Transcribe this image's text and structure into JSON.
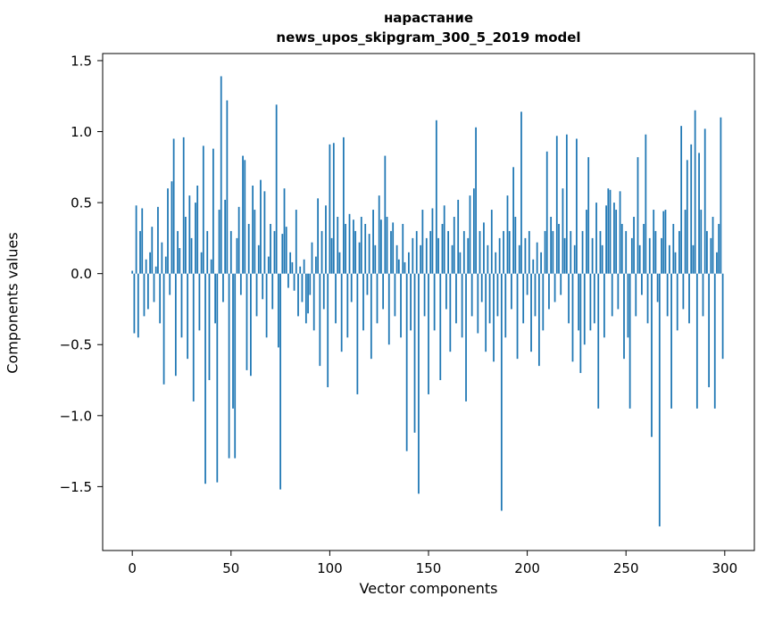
{
  "figure": {
    "background": "#ffffff",
    "axis_color": "#000000"
  },
  "chart_data": {
    "type": "bar",
    "title": "нарастание",
    "subtitle": "news_upos_skipgram_300_5_2019 model",
    "xlabel": "Vector components",
    "ylabel": "Components values",
    "bar_color": "#1f77b4",
    "xlim": [
      -15,
      315
    ],
    "ylim": [
      -1.95,
      1.55
    ],
    "xticks": [
      0,
      50,
      100,
      150,
      200,
      250,
      300
    ],
    "yticks": [
      -1.5,
      -1.0,
      -0.5,
      0.0,
      0.5,
      1.0,
      1.5
    ],
    "values": [
      0.02,
      -0.42,
      0.48,
      -0.45,
      0.3,
      0.46,
      -0.3,
      0.1,
      -0.25,
      0.15,
      0.33,
      -0.2,
      0.05,
      0.47,
      -0.35,
      0.22,
      -0.78,
      0.12,
      0.6,
      -0.15,
      0.65,
      0.95,
      -0.72,
      0.3,
      0.18,
      -0.45,
      0.96,
      0.4,
      -0.6,
      0.55,
      0.25,
      -0.9,
      0.5,
      0.62,
      -0.4,
      0.15,
      0.9,
      -1.48,
      0.3,
      -0.75,
      0.1,
      0.88,
      -0.35,
      -1.47,
      0.45,
      1.39,
      -0.2,
      0.52,
      1.22,
      -1.3,
      0.3,
      -0.95,
      -1.3,
      0.25,
      0.47,
      -0.15,
      0.83,
      0.8,
      -0.68,
      0.35,
      -0.72,
      0.62,
      0.45,
      -0.3,
      0.2,
      0.66,
      -0.18,
      0.58,
      -0.45,
      0.12,
      0.35,
      -0.25,
      0.3,
      1.19,
      -0.52,
      -1.52,
      0.28,
      0.6,
      0.33,
      -0.1,
      0.15,
      0.08,
      -0.12,
      0.45,
      -0.3,
      0.05,
      -0.2,
      0.1,
      -0.35,
      -0.28,
      -0.15,
      0.22,
      -0.4,
      0.12,
      0.53,
      -0.65,
      0.3,
      -0.25,
      0.48,
      -0.8,
      0.91,
      0.25,
      0.92,
      -0.35,
      0.4,
      0.15,
      -0.55,
      0.96,
      0.35,
      -0.45,
      0.42,
      -0.2,
      0.38,
      0.3,
      -0.85,
      0.22,
      0.4,
      -0.4,
      0.35,
      -0.15,
      0.28,
      -0.6,
      0.45,
      0.2,
      -0.35,
      0.55,
      0.38,
      -0.25,
      0.83,
      0.4,
      -0.5,
      0.3,
      0.36,
      -0.3,
      0.2,
      0.1,
      -0.45,
      0.35,
      0.08,
      -1.25,
      0.15,
      -0.4,
      0.25,
      -1.12,
      0.3,
      -1.55,
      0.2,
      0.45,
      -0.3,
      0.25,
      -0.85,
      0.3,
      0.46,
      -0.4,
      1.08,
      0.25,
      -0.75,
      0.35,
      0.48,
      -0.25,
      0.3,
      -0.55,
      0.2,
      0.4,
      -0.35,
      0.52,
      0.15,
      -0.45,
      0.3,
      -0.9,
      0.25,
      0.55,
      -0.3,
      0.6,
      1.03,
      -0.42,
      0.3,
      -0.2,
      0.36,
      -0.55,
      0.2,
      -0.35,
      0.45,
      -0.62,
      0.15,
      -0.3,
      0.25,
      -1.67,
      0.3,
      -0.45,
      0.55,
      0.3,
      -0.25,
      0.75,
      0.4,
      -0.6,
      0.2,
      1.14,
      -0.35,
      0.25,
      -0.15,
      0.3,
      -0.55,
      0.1,
      -0.3,
      0.22,
      -0.65,
      0.15,
      -0.4,
      0.3,
      0.86,
      -0.25,
      0.4,
      0.3,
      -0.2,
      0.97,
      0.35,
      -0.15,
      0.6,
      0.25,
      0.98,
      -0.35,
      0.3,
      -0.62,
      0.2,
      0.95,
      -0.4,
      -0.7,
      0.3,
      -0.5,
      0.45,
      0.82,
      -0.4,
      0.25,
      -0.35,
      0.5,
      -0.95,
      0.3,
      0.2,
      -0.45,
      0.48,
      0.6,
      0.59,
      -0.3,
      0.5,
      0.45,
      -0.25,
      0.58,
      0.35,
      -0.6,
      0.3,
      -0.45,
      -0.95,
      0.25,
      0.4,
      -0.3,
      0.82,
      0.2,
      -0.15,
      0.35,
      0.98,
      -0.35,
      0.25,
      -1.15,
      0.45,
      0.3,
      -0.2,
      -1.78,
      0.25,
      0.44,
      0.45,
      -0.3,
      0.2,
      -0.95,
      0.35,
      0.15,
      -0.4,
      0.3,
      1.04,
      -0.25,
      0.45,
      0.8,
      -0.35,
      0.91,
      0.2,
      1.15,
      -0.95,
      0.85,
      0.45,
      -0.3,
      1.02,
      0.3,
      -0.8,
      0.25,
      0.4,
      -0.95,
      0.15,
      0.35,
      1.1,
      -0.6
    ]
  }
}
